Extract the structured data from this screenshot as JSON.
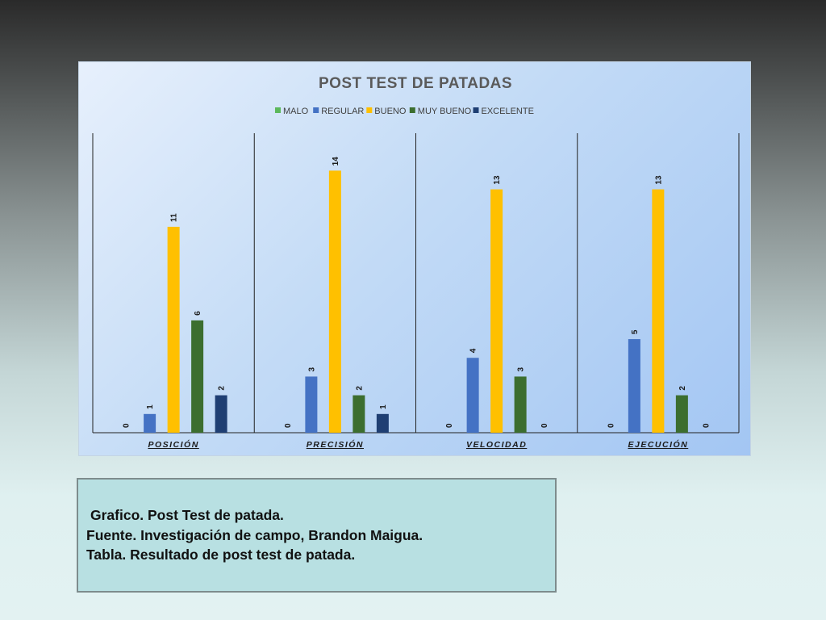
{
  "chart_data": {
    "type": "bar",
    "title": "POST TEST DE PATADAS",
    "categories": [
      "POSICIÓN",
      "PRECISIÓN",
      "VELOCIDAD",
      "EJECUCIÓN"
    ],
    "series": [
      {
        "name": "MALO",
        "color": "#5cb85c",
        "values": [
          0,
          0,
          0,
          0
        ]
      },
      {
        "name": "REGULAR",
        "color": "#4472c4",
        "values": [
          1,
          3,
          4,
          5
        ]
      },
      {
        "name": "BUENO",
        "color": "#ffc000",
        "values": [
          11,
          14,
          13,
          13
        ]
      },
      {
        "name": "MUY BUENO",
        "color": "#3c6e2f",
        "values": [
          6,
          2,
          3,
          2
        ]
      },
      {
        "name": "EXCELENTE",
        "color": "#1f3f73",
        "values": [
          2,
          1,
          0,
          0
        ]
      }
    ],
    "ylim": [
      0,
      16
    ],
    "legend": "top",
    "grid": false
  },
  "caption": {
    "line1": "Grafico. Post Test de patada.",
    "line2": "Fuente.  Investigación de campo, Brandon Maigua.",
    "line3": "Tabla.  Resultado de post test de patada."
  }
}
